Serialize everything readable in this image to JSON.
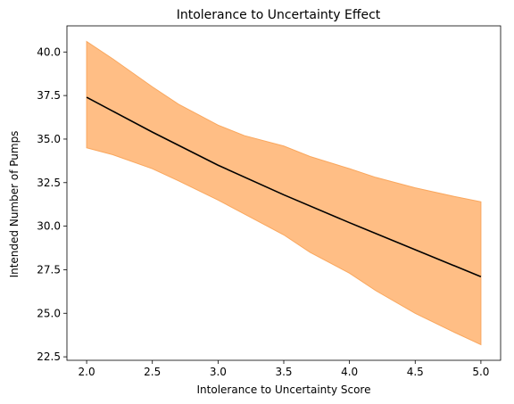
{
  "chart_data": {
    "type": "line",
    "title": "Intolerance to Uncertainty Effect",
    "xlabel": "Intolerance to Uncertainty Score",
    "ylabel": "Intended Number of Pumps",
    "xlim": [
      1.85,
      5.15
    ],
    "ylim": [
      22.3,
      41.5
    ],
    "xticks": [
      2.0,
      2.5,
      3.0,
      3.5,
      4.0,
      4.5,
      5.0
    ],
    "xtick_labels": [
      "2.0",
      "2.5",
      "3.0",
      "3.5",
      "4.0",
      "4.5",
      "5.0"
    ],
    "yticks": [
      22.5,
      25.0,
      27.5,
      30.0,
      32.5,
      35.0,
      37.5,
      40.0
    ],
    "ytick_labels": [
      "22.5",
      "25.0",
      "27.5",
      "30.0",
      "32.5",
      "35.0",
      "37.5",
      "40.0"
    ],
    "grid": false,
    "series": [
      {
        "kind": "line",
        "color": "#000000",
        "x": [
          2.0,
          2.5,
          3.0,
          3.5,
          4.0,
          4.5,
          5.0
        ],
        "y": [
          37.4,
          35.4,
          33.5,
          31.8,
          30.2,
          28.65,
          27.1
        ]
      },
      {
        "kind": "band",
        "color": "#ffbe85",
        "edge_color": "#f9a75e",
        "x": [
          2.0,
          2.2,
          2.5,
          2.7,
          3.0,
          3.2,
          3.5,
          3.7,
          4.0,
          4.2,
          4.5,
          4.8,
          5.0
        ],
        "lower": [
          34.5,
          34.1,
          33.3,
          32.6,
          31.5,
          30.7,
          29.5,
          28.5,
          27.3,
          26.3,
          25.0,
          23.9,
          23.2
        ],
        "upper": [
          40.6,
          39.6,
          38.0,
          37.0,
          35.8,
          35.2,
          34.6,
          34.0,
          33.3,
          32.8,
          32.2,
          31.7,
          31.4
        ]
      }
    ]
  }
}
